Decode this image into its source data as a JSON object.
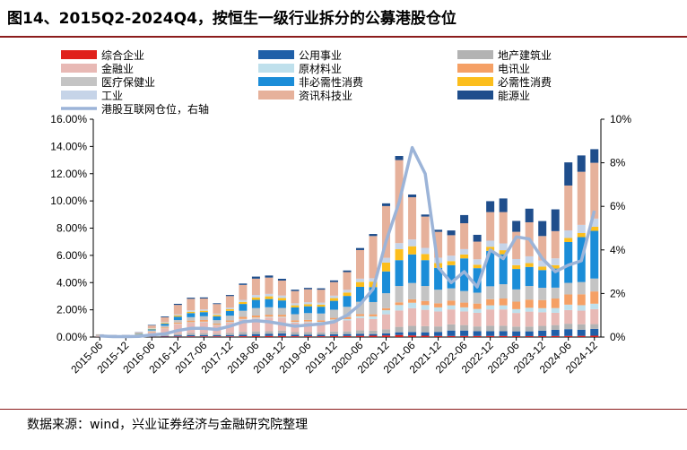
{
  "header": {
    "title": "图14、2015Q2-2024Q4，按恒生一级行业拆分的公募港股仓位"
  },
  "footer": {
    "source": "数据来源：wind，兴业证券经济与金融研究院整理"
  },
  "colors": {
    "综合企业": "#e0201b",
    "公用事业": "#1f5fa8",
    "地产建筑业": "#b3b3b3",
    "金融业": "#e8b9b5",
    "原材料业": "#bfe0ec",
    "电讯业": "#f5a065",
    "医疗保健业": "#c4c4c4",
    "非必需性消费": "#1b8dd8",
    "必需性消费": "#fcbe1c",
    "工业": "#c6d4e8",
    "资讯科技业": "#e6b19b",
    "能源业": "#1f4e8c",
    "line": "#9cb4d8"
  },
  "chart_data": {
    "type": "bar",
    "stacked": true,
    "title": "图14、2015Q2-2024Q4，按恒生一级行业拆分的公募港股仓位",
    "categories": [
      "2015-06",
      "2015-09",
      "2015-12",
      "2016-03",
      "2016-06",
      "2016-09",
      "2016-12",
      "2017-03",
      "2017-06",
      "2017-09",
      "2017-12",
      "2018-03",
      "2018-06",
      "2018-09",
      "2018-12",
      "2019-03",
      "2019-06",
      "2019-09",
      "2019-12",
      "2020-03",
      "2020-06",
      "2020-09",
      "2020-12",
      "2021-03",
      "2021-06",
      "2021-09",
      "2021-12",
      "2022-03",
      "2022-06",
      "2022-09",
      "2022-12",
      "2023-03",
      "2023-06",
      "2023-09",
      "2023-12",
      "2024-03",
      "2024-06",
      "2024-09",
      "2024-12"
    ],
    "x_tick_labels": [
      "2015-06",
      "2015-12",
      "2016-06",
      "2016-12",
      "2017-06",
      "2017-12",
      "2018-06",
      "2018-12",
      "2019-06",
      "2019-12",
      "2020-06",
      "2020-12",
      "2021-06",
      "2021-12",
      "2022-06",
      "2022-12",
      "2023-06",
      "2023-12",
      "2024-06",
      "2024-12"
    ],
    "ylabel_left": "",
    "ylim_left": [
      0,
      16
    ],
    "yticks_left": [
      "0.00%",
      "2.00%",
      "4.00%",
      "6.00%",
      "8.00%",
      "10.00%",
      "12.00%",
      "14.00%",
      "16.00%"
    ],
    "ylim_right": [
      0,
      10
    ],
    "yticks_right": [
      "0%",
      "2%",
      "4%",
      "6%",
      "8%",
      "10%"
    ],
    "series": [
      {
        "name": "综合企业",
        "values": [
          0.01,
          0.01,
          0.01,
          0.01,
          0.02,
          0.03,
          0.04,
          0.05,
          0.05,
          0.05,
          0.05,
          0.06,
          0.07,
          0.08,
          0.08,
          0.06,
          0.06,
          0.06,
          0.07,
          0.08,
          0.09,
          0.1,
          0.12,
          0.15,
          0.12,
          0.1,
          0.08,
          0.08,
          0.08,
          0.08,
          0.08,
          0.08,
          0.07,
          0.07,
          0.07,
          0.08,
          0.08,
          0.09,
          0.1
        ]
      },
      {
        "name": "公用事业",
        "values": [
          0.01,
          0.01,
          0.01,
          0.02,
          0.03,
          0.05,
          0.08,
          0.1,
          0.1,
          0.08,
          0.1,
          0.12,
          0.15,
          0.15,
          0.18,
          0.12,
          0.12,
          0.12,
          0.14,
          0.14,
          0.15,
          0.12,
          0.15,
          0.2,
          0.25,
          0.25,
          0.3,
          0.4,
          0.4,
          0.35,
          0.35,
          0.35,
          0.35,
          0.35,
          0.4,
          0.45,
          0.5,
          0.45,
          0.5
        ]
      },
      {
        "name": "地产建筑业",
        "values": [
          0.02,
          0.02,
          0.02,
          0.03,
          0.05,
          0.08,
          0.12,
          0.15,
          0.14,
          0.12,
          0.15,
          0.2,
          0.2,
          0.2,
          0.22,
          0.18,
          0.18,
          0.17,
          0.2,
          0.2,
          0.25,
          0.25,
          0.3,
          0.4,
          0.45,
          0.45,
          0.4,
          0.45,
          0.4,
          0.35,
          0.4,
          0.4,
          0.35,
          0.35,
          0.35,
          0.35,
          0.4,
          0.4,
          0.35
        ]
      },
      {
        "name": "金融业",
        "values": [
          0.05,
          0.03,
          0.03,
          0.08,
          0.25,
          0.45,
          0.7,
          0.75,
          0.8,
          0.6,
          0.75,
          0.9,
          0.95,
          1.0,
          0.95,
          0.7,
          0.72,
          0.7,
          0.8,
          0.8,
          0.9,
          0.85,
          1.1,
          1.2,
          1.3,
          1.2,
          1.1,
          1.1,
          1.0,
          1.0,
          1.2,
          1.2,
          1.0,
          1.1,
          1.0,
          0.9,
          1.0,
          1.0,
          1.1
        ]
      },
      {
        "name": "原材料业",
        "values": [
          0,
          0,
          0,
          0,
          0.01,
          0.02,
          0.03,
          0.04,
          0.04,
          0.04,
          0.05,
          0.05,
          0.06,
          0.06,
          0.06,
          0.05,
          0.06,
          0.06,
          0.08,
          0.1,
          0.15,
          0.2,
          0.3,
          0.4,
          0.4,
          0.35,
          0.3,
          0.3,
          0.3,
          0.28,
          0.3,
          0.3,
          0.28,
          0.28,
          0.3,
          0.35,
          0.4,
          0.4,
          0.4
        ]
      },
      {
        "name": "电讯业",
        "values": [
          0.01,
          0.01,
          0.01,
          0.02,
          0.05,
          0.08,
          0.1,
          0.12,
          0.12,
          0.1,
          0.12,
          0.15,
          0.15,
          0.15,
          0.15,
          0.12,
          0.12,
          0.12,
          0.12,
          0.15,
          0.15,
          0.15,
          0.15,
          0.2,
          0.25,
          0.3,
          0.3,
          0.35,
          0.35,
          0.4,
          0.45,
          0.5,
          0.55,
          0.6,
          0.6,
          0.7,
          0.75,
          0.8,
          0.9
        ]
      },
      {
        "name": "医疗保健业",
        "values": [
          0.02,
          0.02,
          0.02,
          0.04,
          0.08,
          0.12,
          0.18,
          0.25,
          0.28,
          0.25,
          0.35,
          0.45,
          0.55,
          0.55,
          0.5,
          0.45,
          0.5,
          0.5,
          0.6,
          0.75,
          0.9,
          0.9,
          1.1,
          1.2,
          1.2,
          1.1,
          1.0,
          0.9,
          0.85,
          0.8,
          0.95,
          1.05,
          0.9,
          1.0,
          0.9,
          0.8,
          0.85,
          0.9,
          0.95
        ]
      },
      {
        "name": "非必需性消费",
        "values": [
          0.02,
          0.02,
          0.02,
          0.04,
          0.08,
          0.15,
          0.25,
          0.3,
          0.3,
          0.28,
          0.35,
          0.5,
          0.6,
          0.6,
          0.55,
          0.5,
          0.5,
          0.5,
          0.65,
          0.8,
          1.1,
          1.1,
          1.6,
          1.9,
          2.1,
          1.9,
          1.6,
          1.7,
          2.4,
          1.8,
          2.6,
          2.2,
          1.5,
          1.4,
          1.3,
          1.4,
          3.0,
          3.3,
          3.5
        ]
      },
      {
        "name": "必需性消费",
        "values": [
          0.01,
          0.01,
          0.01,
          0.02,
          0.04,
          0.06,
          0.08,
          0.1,
          0.1,
          0.1,
          0.12,
          0.15,
          0.18,
          0.2,
          0.18,
          0.15,
          0.15,
          0.15,
          0.2,
          0.25,
          0.35,
          0.4,
          0.65,
          0.8,
          0.6,
          0.45,
          0.35,
          0.3,
          0.28,
          0.25,
          0.3,
          0.3,
          0.28,
          0.28,
          0.25,
          0.25,
          0.3,
          0.3,
          0.3
        ]
      },
      {
        "name": "工业",
        "values": [
          0.01,
          0.01,
          0.01,
          0.02,
          0.04,
          0.06,
          0.08,
          0.1,
          0.1,
          0.1,
          0.12,
          0.15,
          0.18,
          0.18,
          0.18,
          0.15,
          0.15,
          0.15,
          0.18,
          0.2,
          0.25,
          0.25,
          0.35,
          0.45,
          0.5,
          0.45,
          0.4,
          0.4,
          0.4,
          0.4,
          0.45,
          0.5,
          0.45,
          0.5,
          0.45,
          0.5,
          0.55,
          0.6,
          0.6
        ]
      },
      {
        "name": "资讯科技业",
        "values": [
          0.03,
          0.01,
          0.01,
          0.05,
          0.2,
          0.35,
          0.7,
          0.85,
          0.8,
          0.7,
          0.85,
          1.1,
          1.2,
          1.2,
          1.1,
          0.9,
          0.95,
          0.95,
          1.0,
          1.3,
          2.1,
          3.1,
          3.8,
          6.1,
          3.1,
          2.3,
          1.9,
          1.5,
          1.9,
          1.3,
          2.1,
          2.3,
          2.0,
          2.5,
          1.8,
          2.0,
          3.3,
          3.9,
          4.1
        ]
      },
      {
        "name": "能源业",
        "values": [
          0.01,
          0.01,
          0.01,
          0.02,
          0.04,
          0.06,
          0.08,
          0.08,
          0.08,
          0.06,
          0.08,
          0.1,
          0.15,
          0.15,
          0.13,
          0.1,
          0.1,
          0.1,
          0.12,
          0.12,
          0.15,
          0.15,
          0.2,
          0.3,
          0.2,
          0.15,
          0.15,
          0.35,
          0.6,
          0.5,
          0.8,
          1.0,
          0.8,
          1.0,
          1.1,
          1.6,
          1.7,
          1.2,
          1.0
        ]
      }
    ],
    "line_series": {
      "name": "港股互联网仓位，右轴",
      "axis": "right",
      "values": [
        0.05,
        0.02,
        0.02,
        0.03,
        0.1,
        0.15,
        0.3,
        0.4,
        0.4,
        0.35,
        0.5,
        0.7,
        0.75,
        0.7,
        0.6,
        0.5,
        0.55,
        0.6,
        0.7,
        1.0,
        1.5,
        2.2,
        4.4,
        6.2,
        8.7,
        7.5,
        3.2,
        2.5,
        3.0,
        2.3,
        4.0,
        3.6,
        4.6,
        4.5,
        3.6,
        3.0,
        3.3,
        3.5,
        5.8
      ]
    },
    "legend": {
      "columns": [
        [
          "综合企业",
          "金融业",
          "医疗保健业",
          "工业",
          "港股互联网仓位，右轴"
        ],
        [
          "公用事业",
          "原材料业",
          "非必需性消费",
          "资讯科技业"
        ],
        [
          "地产建筑业",
          "电讯业",
          "必需性消费",
          "能源业"
        ]
      ],
      "placement": "top"
    }
  }
}
